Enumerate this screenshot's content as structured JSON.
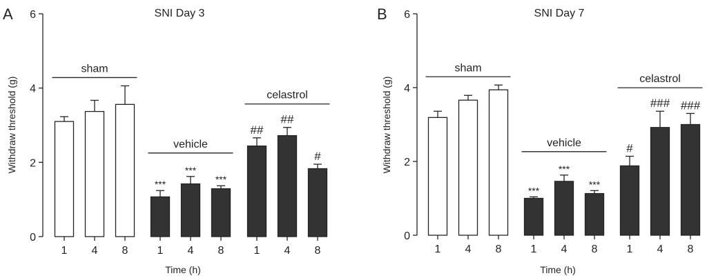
{
  "chart_data": [
    {
      "type": "bar",
      "panel": "A",
      "title": "SNI Day 3",
      "xlabel": "Time (h)",
      "ylabel": "Withdraw threshold (g)",
      "ylim": [
        0,
        6
      ],
      "yticks": [
        0,
        2,
        4,
        6
      ],
      "groups": [
        {
          "name": "sham",
          "fill": "#ffffff",
          "bars": [
            {
              "time": "1",
              "value": 3.1,
              "err": 0.13,
              "sig": ""
            },
            {
              "time": "4",
              "value": 3.37,
              "err": 0.3,
              "sig": ""
            },
            {
              "time": "8",
              "value": 3.56,
              "err": 0.5,
              "sig": ""
            }
          ]
        },
        {
          "name": "vehicle",
          "fill": "#333333",
          "bars": [
            {
              "time": "1",
              "value": 1.07,
              "err": 0.17,
              "sig": "***"
            },
            {
              "time": "4",
              "value": 1.42,
              "err": 0.2,
              "sig": "***"
            },
            {
              "time": "8",
              "value": 1.29,
              "err": 0.08,
              "sig": "***"
            }
          ]
        },
        {
          "name": "celastrol",
          "fill": "#333333",
          "bars": [
            {
              "time": "1",
              "value": 2.44,
              "err": 0.22,
              "sig": "##"
            },
            {
              "time": "4",
              "value": 2.72,
              "err": 0.22,
              "sig": "##"
            },
            {
              "time": "8",
              "value": 1.83,
              "err": 0.12,
              "sig": "#"
            }
          ]
        }
      ]
    },
    {
      "type": "bar",
      "panel": "B",
      "title": "SNI Day 7",
      "xlabel": "Time (h)",
      "ylabel": "Withdraw threshold (g)",
      "ylim": [
        0,
        6
      ],
      "yticks": [
        0,
        2,
        4,
        6
      ],
      "groups": [
        {
          "name": "sham",
          "fill": "#ffffff",
          "bars": [
            {
              "time": "1",
              "value": 3.19,
              "err": 0.17,
              "sig": ""
            },
            {
              "time": "4",
              "value": 3.66,
              "err": 0.13,
              "sig": ""
            },
            {
              "time": "8",
              "value": 3.94,
              "err": 0.13,
              "sig": ""
            }
          ]
        },
        {
          "name": "vehicle",
          "fill": "#333333",
          "bars": [
            {
              "time": "1",
              "value": 1.0,
              "err": 0.04,
              "sig": "***"
            },
            {
              "time": "4",
              "value": 1.46,
              "err": 0.17,
              "sig": "***"
            },
            {
              "time": "8",
              "value": 1.13,
              "err": 0.08,
              "sig": "***"
            }
          ]
        },
        {
          "name": "celastrol",
          "fill": "#333333",
          "bars": [
            {
              "time": "1",
              "value": 1.88,
              "err": 0.26,
              "sig": "#"
            },
            {
              "time": "4",
              "value": 2.92,
              "err": 0.44,
              "sig": "###"
            },
            {
              "time": "8",
              "value": 3.0,
              "err": 0.3,
              "sig": "###"
            }
          ]
        }
      ]
    }
  ]
}
